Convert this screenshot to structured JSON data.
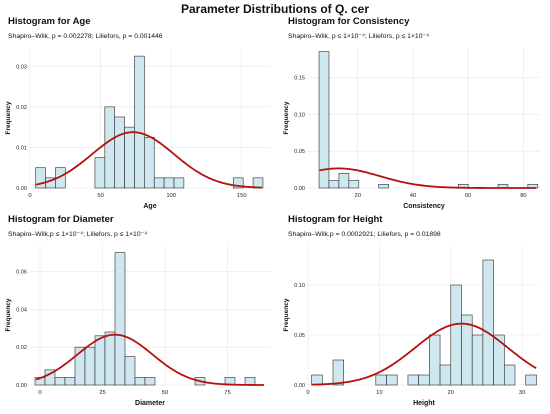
{
  "title": "Parameter Distributions of Q. cer",
  "style": {
    "bar_fill": "#cfe8f0",
    "bar_stroke": "#2b2b2b",
    "curve_color": "#b50f0f",
    "grid_color": "#e6e6e6"
  },
  "chart_data": [
    {
      "type": "bar",
      "title": "Histogram for Age",
      "subtitle": "Shapiro–Wilk, p = 0.002278; Liliefors, p = 0.001446",
      "xlabel": "Age",
      "ylabel": "Frequency",
      "xlim": [
        0,
        170
      ],
      "ylim": [
        0,
        0.0345
      ],
      "xticks": [
        0,
        50,
        100,
        150
      ],
      "yticks": [
        0.0,
        0.01,
        0.02,
        0.03
      ],
      "ytick_labels": [
        "0.00",
        "0.01",
        "0.02",
        "0.03"
      ],
      "bin_width": 7,
      "bin_starts": [
        4,
        11,
        18,
        25,
        32,
        39,
        46,
        53,
        60,
        67,
        74,
        81,
        88,
        95,
        102,
        109,
        116,
        123,
        130,
        137,
        144,
        151,
        158
      ],
      "density": [
        0.005,
        0.0025,
        0.005,
        0.0,
        0.0,
        0.0,
        0.0075,
        0.02,
        0.0175,
        0.015,
        0.0325,
        0.0125,
        0.0025,
        0.0025,
        0.0025,
        0.0,
        0.0,
        0.0,
        0.0,
        0.0,
        0.0025,
        0.0,
        0.0025
      ],
      "normal_curve": {
        "mean": 73,
        "sd": 29
      }
    },
    {
      "type": "bar",
      "title": "Histogram for Consistency",
      "subtitle": "Shapiro–Wilk, p ≤ 1×10⁻⁴; Liliefors, p ≤ 1×10⁻⁴",
      "xlabel": "Consistency",
      "ylabel": "Frequency",
      "xlim": [
        2,
        86
      ],
      "ylim": [
        0,
        0.19
      ],
      "xticks": [
        20,
        40,
        60,
        80
      ],
      "yticks": [
        0.0,
        0.05,
        0.1,
        0.15
      ],
      "ytick_labels": [
        "0.00",
        "0.05",
        "0.10",
        "0.15"
      ],
      "bin_width": 3.6,
      "bin_starts": [
        6,
        9.6,
        13.2,
        16.8,
        20.4,
        24,
        27.6,
        31.2,
        34.8,
        38.4,
        42,
        45.6,
        49.2,
        52.8,
        56.4,
        60,
        63.6,
        67.2,
        70.8,
        74.4,
        78,
        81.6
      ],
      "density": [
        0.185,
        0.01,
        0.02,
        0.01,
        0.0,
        0.0,
        0.005,
        0.0,
        0.0,
        0.0,
        0.0,
        0.0,
        0.0,
        0.0,
        0.005,
        0.0,
        0.0,
        0.0,
        0.005,
        0.0,
        0.0,
        0.005
      ],
      "normal_curve": {
        "mean": 13,
        "sd": 15
      }
    },
    {
      "type": "bar",
      "title": "Histogram for Diameter",
      "subtitle": "Shapiro–Wilk,p ≤ 1×10⁻⁴; Liliefors, p ≤ 1×10⁻⁴",
      "xlabel": "Diameter",
      "ylabel": "Frequency",
      "xlim": [
        -4,
        92
      ],
      "ylim": [
        0,
        0.074
      ],
      "xticks": [
        0,
        25,
        50,
        75
      ],
      "yticks": [
        0.0,
        0.02,
        0.04,
        0.06
      ],
      "ytick_labels": [
        "0.00",
        "0.02",
        "0.04",
        "0.06"
      ],
      "bin_width": 4,
      "bin_starts": [
        -2,
        2,
        6,
        10,
        14,
        18,
        22,
        26,
        30,
        34,
        38,
        42,
        46,
        50,
        54,
        58,
        62,
        66,
        70,
        74,
        78,
        82,
        86
      ],
      "density": [
        0.004,
        0.008,
        0.004,
        0.004,
        0.02,
        0.02,
        0.026,
        0.028,
        0.07,
        0.015,
        0.004,
        0.004,
        0.0,
        0.0,
        0.0,
        0.0,
        0.004,
        0.0,
        0.0,
        0.004,
        0.0,
        0.004,
        0.0
      ],
      "normal_curve": {
        "mean": 30,
        "sd": 15
      }
    },
    {
      "type": "bar",
      "title": "Histogram for Height",
      "subtitle": "Shapiro–Wilk,p = 0.0002921; Liliefors, p = 0.01898",
      "xlabel": "Height",
      "ylabel": "Frequency",
      "xlim": [
        0,
        32.5
      ],
      "ylim": [
        0,
        0.14
      ],
      "xticks": [
        0,
        10,
        20,
        30
      ],
      "yticks": [
        0.0,
        0.05,
        0.1
      ],
      "ytick_labels": [
        "0.00",
        "0.05",
        "0.10"
      ],
      "bin_width": 1.5,
      "bin_starts": [
        0.5,
        2,
        3.5,
        5,
        6.5,
        8,
        9.5,
        11,
        12.5,
        14,
        15.5,
        17,
        18.5,
        20,
        21.5,
        23,
        24.5,
        26,
        27.5,
        29,
        30.5
      ],
      "density": [
        0.01,
        0.0,
        0.025,
        0.0,
        0.0,
        0.0,
        0.01,
        0.01,
        0.0,
        0.01,
        0.01,
        0.05,
        0.02,
        0.1,
        0.07,
        0.05,
        0.125,
        0.05,
        0.02,
        0.0,
        0.01
      ],
      "normal_curve": {
        "mean": 21.5,
        "sd": 6.5
      }
    }
  ]
}
